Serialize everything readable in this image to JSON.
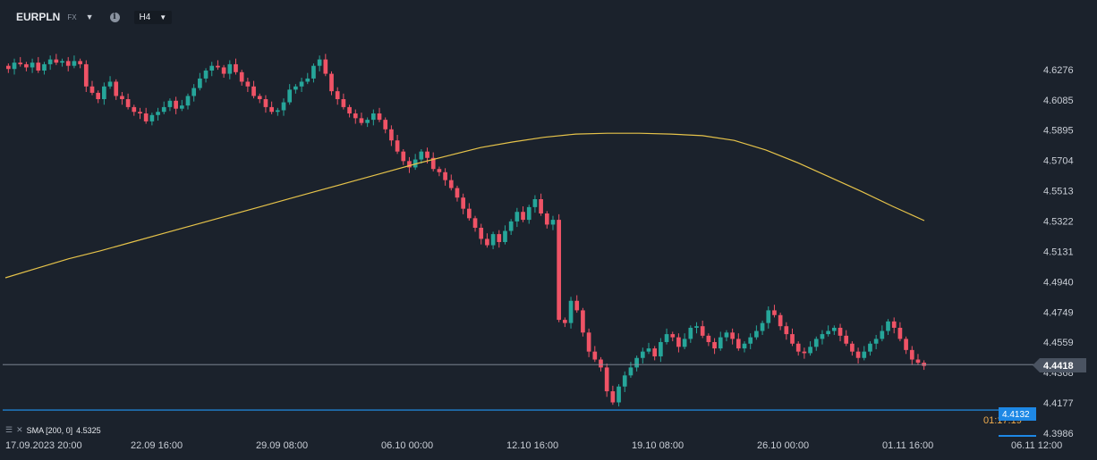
{
  "header": {
    "symbol": "EURPLN",
    "asset_class": "FX",
    "timeframe": "H4"
  },
  "indicator": {
    "label": "SMA [200, 0]",
    "value": "4.5325",
    "color": "#e6c34a"
  },
  "price_badges": {
    "current": "4.4418",
    "line2_value": "4.4132",
    "line2_time": "01:17:19"
  },
  "colors": {
    "background": "#1b222c",
    "up": "#26a69a",
    "down": "#ef5366",
    "sma": "#e6c34a",
    "blue_line": "#2196f3",
    "grid_text": "#c9ced6"
  },
  "chart_data": {
    "type": "candlestick",
    "symbol": "EURPLN",
    "timeframe": "H4",
    "y_ticks": [
      "4.6276",
      "4.6085",
      "4.5895",
      "4.5704",
      "4.5513",
      "4.5322",
      "4.5131",
      "4.4940",
      "4.4749",
      "4.4559",
      "4.4368",
      "4.4177",
      "4.3986"
    ],
    "ylim": [
      4.3986,
      4.6467
    ],
    "x_ticks": [
      "17.09.2023  20:00",
      "22.09  16:00",
      "29.09  08:00",
      "06.10  00:00",
      "12.10  16:00",
      "19.10  08:00",
      "26.10  00:00",
      "01.11  16:00",
      "06.11  12:00"
    ],
    "last_price": 4.4418,
    "horizontal_line": 4.4132,
    "sma_period": 200,
    "sma_last": 4.5325,
    "sma_points": [
      4.4965,
      4.5025,
      4.5085,
      4.5135,
      4.519,
      4.5245,
      4.53,
      4.5355,
      4.541,
      4.5465,
      4.552,
      4.5575,
      4.563,
      4.5685,
      4.5735,
      4.5785,
      4.582,
      4.585,
      4.587,
      4.5875,
      4.5875,
      4.587,
      4.586,
      4.583,
      4.577,
      4.569,
      4.56,
      4.551,
      4.5415,
      4.5325
    ],
    "closes": [
      4.628,
      4.632,
      4.631,
      4.629,
      4.632,
      4.627,
      4.631,
      4.634,
      4.632,
      4.633,
      4.63,
      4.633,
      4.631,
      4.617,
      4.613,
      4.609,
      4.617,
      4.62,
      4.611,
      4.609,
      4.604,
      4.601,
      4.6,
      4.595,
      4.599,
      4.601,
      4.604,
      4.608,
      4.603,
      4.605,
      4.611,
      4.616,
      4.622,
      4.627,
      4.63,
      4.629,
      4.625,
      4.631,
      4.626,
      4.62,
      4.617,
      4.611,
      4.609,
      4.604,
      4.601,
      4.602,
      4.607,
      4.615,
      4.617,
      4.62,
      4.622,
      4.63,
      4.634,
      4.625,
      4.614,
      4.609,
      4.604,
      4.6,
      4.597,
      4.594,
      4.596,
      4.6,
      4.596,
      4.59,
      4.583,
      4.576,
      4.57,
      4.566,
      4.571,
      4.576,
      4.572,
      4.565,
      4.563,
      4.558,
      4.553,
      4.547,
      4.54,
      4.534,
      4.528,
      4.521,
      4.517,
      4.524,
      4.519,
      4.526,
      4.532,
      4.538,
      4.533,
      4.541,
      4.546,
      4.537,
      4.53,
      4.533,
      4.47,
      4.468,
      4.482,
      4.476,
      4.462,
      4.45,
      4.445,
      4.44,
      4.425,
      4.418,
      4.428,
      4.435,
      4.44,
      4.446,
      4.45,
      4.452,
      4.447,
      4.456,
      4.461,
      4.459,
      4.453,
      4.458,
      4.465,
      4.466,
      4.46,
      4.456,
      4.452,
      4.459,
      4.462,
      4.458,
      4.452,
      4.455,
      4.459,
      4.463,
      4.468,
      4.476,
      4.473,
      4.466,
      4.461,
      4.455,
      4.45,
      4.449,
      4.453,
      4.458,
      4.461,
      4.463,
      4.465,
      4.46,
      4.455,
      4.45,
      4.446,
      4.45,
      4.455,
      4.458,
      4.463,
      4.469,
      4.465,
      4.458,
      4.451,
      4.445,
      4.443,
      4.441
    ]
  }
}
